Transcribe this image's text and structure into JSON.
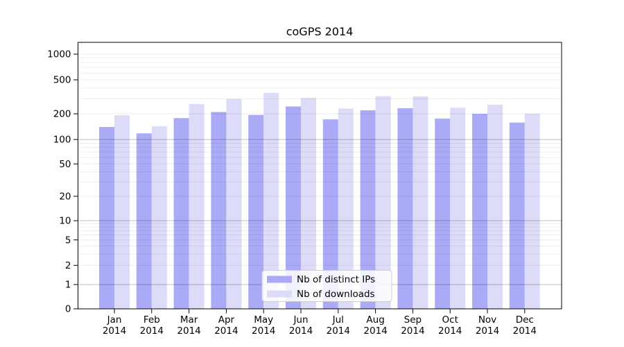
{
  "figure": {
    "background": "#ffffff",
    "axis_color": "#000000",
    "grid_major_color": "rgba(0,0,0,0.25)",
    "grid_minor_color": "rgba(0,0,0,0.08)"
  },
  "chart_data": {
    "type": "bar",
    "title": "coGPS 2014",
    "categories": [
      "Jan",
      "Feb",
      "Mar",
      "Apr",
      "May",
      "Jun",
      "Jul",
      "Aug",
      "Sep",
      "Oct",
      "Nov",
      "Dec"
    ],
    "category_year": "2014",
    "series": [
      {
        "name": "Nb of distinct IPs",
        "color": "#aaaaf6",
        "values": [
          140,
          118,
          178,
          210,
          194,
          244,
          172,
          220,
          232,
          176,
          200,
          158
        ]
      },
      {
        "name": "Nb of downloads",
        "color": "#dcdcf8",
        "values": [
          192,
          143,
          260,
          298,
          352,
          307,
          230,
          322,
          319,
          236,
          256,
          200
        ]
      }
    ],
    "xlabel": "",
    "ylabel": "",
    "yscale": "log above 1, linear 0-1",
    "ylim": [
      0,
      1300
    ],
    "y_ticks": [
      0,
      1,
      2,
      5,
      10,
      20,
      50,
      100,
      200,
      500,
      1000
    ],
    "major_grid_values": [
      1,
      10,
      100
    ],
    "minor_grid_decades": [
      1,
      10,
      100
    ],
    "grid": true,
    "legend": {
      "position": "lower center",
      "entries": [
        "Nb of distinct IPs",
        "Nb of downloads"
      ]
    }
  }
}
